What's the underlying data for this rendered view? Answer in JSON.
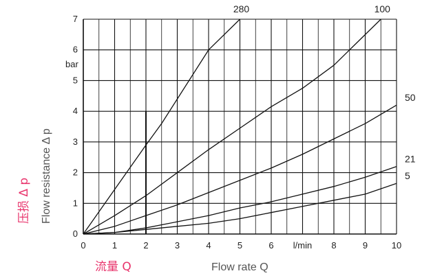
{
  "chart_data": {
    "type": "line",
    "grid": true,
    "xlim": [
      0,
      10
    ],
    "ylim": [
      0,
      7
    ],
    "x_ticks": [
      0,
      1,
      2,
      3,
      4,
      5,
      6,
      7,
      8,
      9,
      10
    ],
    "y_ticks": [
      0,
      1,
      2,
      3,
      4,
      5,
      6,
      7
    ],
    "x_tick_labels": [
      "0",
      "1",
      "2",
      "3",
      "4",
      "5",
      "6",
      "l/min",
      "8",
      "9",
      "10"
    ],
    "y_tick_labels": [
      "0",
      "1",
      "2",
      "3",
      "4",
      "5",
      "6",
      "7"
    ],
    "x_unit": "l/min",
    "y_unit": "bar",
    "xlabel": "Flow rate Q",
    "xlabel_cn": "流量 Q",
    "ylabel": "Flow resistance Δ p",
    "ylabel_cn": "压损 Δ p",
    "series": [
      {
        "name": "280",
        "x": [
          0,
          1,
          2,
          2.5,
          3,
          4,
          5.0
        ],
        "y": [
          0,
          1.45,
          2.9,
          3.6,
          4.4,
          6.0,
          7.0
        ]
      },
      {
        "name": "100",
        "x": [
          0,
          1,
          2,
          3,
          4,
          5,
          6,
          7,
          8,
          9,
          9.5
        ],
        "y": [
          0,
          0.6,
          1.25,
          2.0,
          2.75,
          3.45,
          4.15,
          4.75,
          5.5,
          6.5,
          7.0
        ]
      },
      {
        "name": "50",
        "x": [
          0,
          1,
          2,
          3,
          4,
          5,
          6,
          7,
          8,
          9,
          10
        ],
        "y": [
          0,
          0.25,
          0.6,
          0.95,
          1.35,
          1.75,
          2.15,
          2.6,
          3.1,
          3.6,
          4.2
        ]
      },
      {
        "name": "21",
        "x": [
          0,
          1,
          2,
          3,
          4,
          5,
          6,
          7,
          8,
          9,
          10
        ],
        "y": [
          0,
          0.05,
          0.2,
          0.4,
          0.6,
          0.85,
          1.05,
          1.3,
          1.55,
          1.85,
          2.2
        ]
      },
      {
        "name": "5",
        "x": [
          0,
          1,
          2,
          3,
          4,
          5,
          6,
          7,
          8,
          9,
          10
        ],
        "y": [
          0,
          0.05,
          0.15,
          0.25,
          0.35,
          0.5,
          0.7,
          0.9,
          1.1,
          1.3,
          1.65
        ]
      }
    ]
  }
}
